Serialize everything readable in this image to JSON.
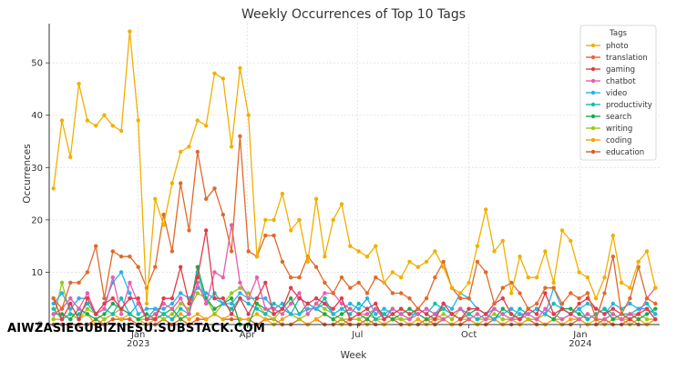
{
  "watermark": "AIWZASIEGUBIZNESU.SUBSTACK.COM",
  "chart_data": {
    "type": "line",
    "title": "Weekly Occurrences of Top 10 Tags",
    "xlabel": "Week",
    "ylabel": "Occurrences",
    "ylim": [
      0,
      57.5
    ],
    "yticks": [
      0,
      10,
      20,
      30,
      40,
      50
    ],
    "x_start": "2022-10-23",
    "x_interval_days": 7,
    "x_ticks": [
      {
        "date": "2023-01-01",
        "label": "Jan",
        "sublabel": "2023"
      },
      {
        "date": "2023-04-01",
        "label": "Apr",
        "sublabel": ""
      },
      {
        "date": "2023-07-01",
        "label": "Jul",
        "sublabel": ""
      },
      {
        "date": "2023-10-01",
        "label": "Oct",
        "sublabel": ""
      },
      {
        "date": "2024-01-01",
        "label": "Jan",
        "sublabel": "2024"
      }
    ],
    "grid": true,
    "legend_title": "Tags",
    "legend_position": "top-right",
    "series": [
      {
        "name": "photo",
        "color": "#f0b000",
        "values": [
          26,
          39,
          32,
          46,
          39,
          38,
          40,
          38,
          37,
          56,
          39,
          4,
          24,
          19,
          27,
          33,
          34,
          39,
          38,
          48,
          47,
          34,
          49,
          40,
          13,
          20,
          20,
          25,
          18,
          20,
          12,
          24,
          13,
          20,
          23,
          15,
          14,
          13,
          15,
          8,
          10,
          9,
          12,
          11,
          12,
          14,
          11,
          7,
          6,
          8,
          15,
          22,
          14,
          16,
          6,
          13,
          9,
          9,
          14,
          8,
          18,
          16,
          10,
          9,
          5,
          9,
          17,
          8,
          7,
          12,
          14,
          7
        ]
      },
      {
        "name": "translation",
        "color": "#e06a2a",
        "values": [
          5,
          3,
          8,
          8,
          10,
          15,
          5,
          14,
          13,
          13,
          11,
          7,
          11,
          21,
          14,
          27,
          18,
          33,
          24,
          26,
          21,
          14,
          36,
          14,
          13,
          17,
          17,
          12,
          9,
          9,
          13,
          11,
          8,
          6,
          9,
          7,
          8,
          6,
          9,
          8,
          6,
          6,
          5,
          3,
          5,
          9,
          12,
          7,
          5,
          5,
          12,
          10,
          4,
          7,
          8,
          6,
          3,
          4,
          7,
          7,
          4,
          6,
          5,
          6,
          1,
          6,
          13,
          2,
          5,
          11,
          5,
          4
        ]
      },
      {
        "name": "gaming",
        "color": "#e23a4a",
        "values": [
          5,
          1,
          4,
          1,
          5,
          2,
          4,
          5,
          3,
          5,
          5,
          1,
          1,
          5,
          5,
          11,
          4,
          9,
          18,
          5,
          5,
          2,
          5,
          2,
          5,
          8,
          2,
          3,
          7,
          5,
          4,
          5,
          4,
          3,
          5,
          1,
          2,
          3,
          4,
          1,
          2,
          3,
          2,
          3,
          2,
          1,
          4,
          2,
          1,
          3,
          3,
          2,
          4,
          5,
          2,
          1,
          3,
          2,
          6,
          2,
          3,
          2,
          4,
          5,
          3,
          2,
          3,
          2,
          1,
          2,
          3,
          1
        ]
      },
      {
        "name": "chatbot",
        "color": "#e85cb0",
        "values": [
          2,
          3,
          5,
          3,
          6,
          2,
          3,
          9,
          2,
          8,
          4,
          1,
          2,
          4,
          3,
          5,
          2,
          8,
          4,
          10,
          9,
          19,
          8,
          5,
          9,
          3,
          3,
          2,
          4,
          6,
          2,
          4,
          6,
          6,
          4,
          3,
          2,
          2,
          3,
          1,
          3,
          2,
          1,
          2,
          3,
          2,
          1,
          2,
          3,
          1,
          2,
          1,
          3,
          2,
          1,
          1,
          2,
          1,
          3,
          2,
          1,
          2,
          1,
          2,
          1,
          1,
          2,
          1,
          2,
          2,
          5,
          7
        ]
      },
      {
        "name": "video",
        "color": "#2ab0e8",
        "values": [
          4,
          6,
          3,
          5,
          5,
          2,
          4,
          8,
          10,
          6,
          2,
          3,
          3,
          3,
          4,
          6,
          5,
          7,
          6,
          5,
          4,
          4,
          6,
          5,
          5,
          5,
          3,
          4,
          2,
          2,
          3,
          3,
          4,
          2,
          3,
          4,
          3,
          5,
          2,
          3,
          2,
          3,
          2,
          2,
          3,
          2,
          4,
          3,
          6,
          5,
          3,
          2,
          1,
          2,
          3,
          2,
          2,
          3,
          2,
          7,
          3,
          2,
          3,
          4,
          3,
          2,
          4,
          3,
          4,
          3,
          3,
          2
        ]
      },
      {
        "name": "productivity",
        "color": "#12bcb6",
        "values": [
          3,
          1,
          2,
          2,
          4,
          2,
          3,
          2,
          5,
          2,
          4,
          1,
          3,
          2,
          1,
          3,
          2,
          10,
          4,
          6,
          4,
          3,
          5,
          4,
          3,
          2,
          4,
          3,
          2,
          5,
          4,
          3,
          5,
          2,
          3,
          2,
          4,
          3,
          1,
          2,
          3,
          2,
          1,
          3,
          2,
          4,
          3,
          2,
          3,
          2,
          1,
          2,
          3,
          2,
          1,
          3,
          2,
          3,
          2,
          4,
          3,
          2,
          3,
          1,
          2,
          3,
          2,
          1,
          2,
          3,
          4,
          2
        ]
      },
      {
        "name": "search",
        "color": "#1aaa4a",
        "values": [
          2,
          2,
          1,
          3,
          2,
          1,
          2,
          4,
          3,
          2,
          1,
          2,
          1,
          2,
          3,
          1,
          2,
          11,
          5,
          3,
          4,
          5,
          0,
          0,
          4,
          3,
          2,
          3,
          5,
          2,
          4,
          3,
          2,
          1,
          2,
          3,
          2,
          1,
          3,
          2,
          1,
          2,
          3,
          2,
          1,
          2,
          3,
          2,
          1,
          2,
          3,
          2,
          1,
          3,
          2,
          1,
          2,
          3,
          2,
          1,
          3,
          3,
          2,
          1,
          2,
          3,
          1,
          2,
          2,
          1,
          2,
          3
        ]
      },
      {
        "name": "writing",
        "color": "#9cc61a",
        "values": [
          1,
          8,
          2,
          1,
          3,
          2,
          1,
          2,
          3,
          2,
          1,
          1,
          2,
          1,
          2,
          4,
          3,
          6,
          5,
          2,
          4,
          6,
          7,
          6,
          4,
          2,
          1,
          3,
          2,
          1,
          2,
          4,
          3,
          2,
          1,
          1,
          1,
          2,
          1,
          1,
          2,
          1,
          1,
          2,
          1,
          1,
          2,
          1,
          3,
          2,
          1,
          1,
          2,
          1,
          1,
          2,
          1,
          1,
          2,
          1,
          1,
          2,
          1,
          2,
          1,
          1,
          2,
          1,
          1,
          2,
          1,
          1
        ]
      },
      {
        "name": "coding",
        "color": "#f5a400",
        "values": [
          1,
          1,
          2,
          1,
          2,
          0,
          1,
          2,
          1,
          2,
          1,
          0,
          1,
          2,
          1,
          2,
          1,
          2,
          1,
          2,
          1,
          2,
          1,
          1,
          2,
          1,
          0,
          1,
          2,
          1,
          0,
          1,
          2,
          1,
          0,
          1,
          1,
          0,
          1,
          0,
          1,
          1,
          0,
          1,
          0,
          1,
          1,
          0,
          1,
          1,
          0,
          1,
          1,
          0,
          1,
          0,
          1,
          1,
          0,
          1,
          0,
          1,
          1,
          0,
          1,
          0,
          1,
          1,
          0,
          1,
          0,
          1
        ]
      },
      {
        "name": "education",
        "color": "#e05a20",
        "values": [
          0,
          0,
          0,
          0,
          0,
          1,
          0,
          1,
          1,
          1,
          0,
          0,
          0,
          1,
          0,
          1,
          0,
          1,
          1,
          2,
          1,
          1,
          1,
          1,
          0,
          1,
          1,
          0,
          0,
          1,
          0,
          1,
          0,
          0,
          1,
          0,
          0,
          1,
          0,
          0,
          1,
          0,
          0,
          0,
          1,
          0,
          1,
          0,
          0,
          1,
          0,
          0,
          1,
          0,
          0,
          0,
          1,
          0,
          0,
          1,
          0,
          0,
          1,
          0,
          0,
          1,
          0,
          0,
          1,
          0,
          0,
          1
        ]
      }
    ]
  }
}
